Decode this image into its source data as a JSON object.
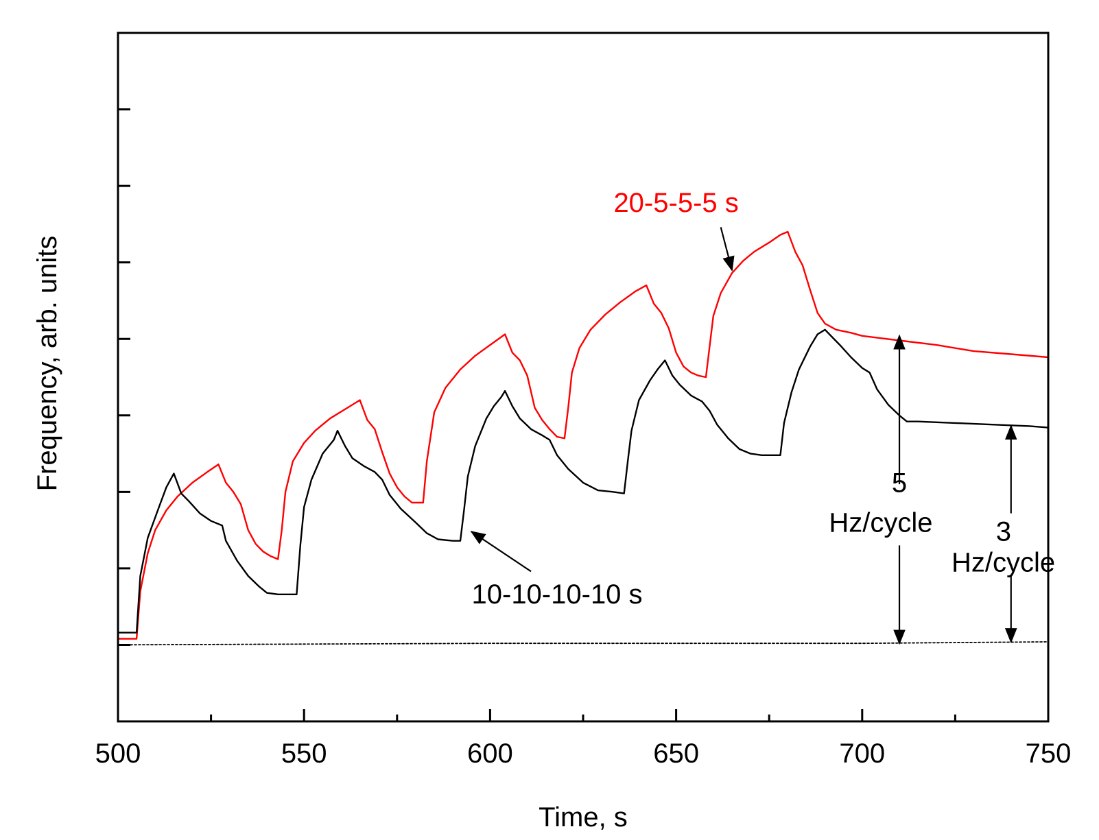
{
  "chart_data": {
    "type": "line",
    "title": "",
    "xlabel": "Time, s",
    "ylabel": "Frequency, arb. units",
    "xlim": [
      500,
      750
    ],
    "ylim": [
      -5,
      40
    ],
    "x_major_ticks": [
      500,
      550,
      600,
      650,
      700,
      750
    ],
    "x_minor_ticks": [
      525,
      575,
      625,
      675,
      725
    ],
    "y_ticks": [
      0,
      5,
      10,
      15,
      20,
      25,
      30,
      35
    ],
    "y_tick_labels_shown": false,
    "grid": false,
    "colors": {
      "red": "#ff0000",
      "black": "#000000",
      "axis": "#000000"
    },
    "series": [
      {
        "name": "20-5-5-5 s",
        "color": "#ff0000",
        "points": [
          [
            500,
            0.4
          ],
          [
            504,
            0.4
          ],
          [
            505,
            0.4
          ],
          [
            506,
            3.5
          ],
          [
            508,
            6.0
          ],
          [
            510,
            7.5
          ],
          [
            513,
            8.8
          ],
          [
            516,
            9.7
          ],
          [
            520,
            10.6
          ],
          [
            524,
            11.3
          ],
          [
            527,
            11.8
          ],
          [
            529,
            10.6
          ],
          [
            531,
            10.0
          ],
          [
            533,
            9.2
          ],
          [
            535,
            7.5
          ],
          [
            537,
            6.6
          ],
          [
            539,
            6.1
          ],
          [
            541,
            5.8
          ],
          [
            543,
            5.6
          ],
          [
            544,
            7.5
          ],
          [
            545,
            10.0
          ],
          [
            547,
            12.0
          ],
          [
            550,
            13.2
          ],
          [
            553,
            14.0
          ],
          [
            557,
            14.8
          ],
          [
            561,
            15.4
          ],
          [
            565,
            16.0
          ],
          [
            567,
            14.7
          ],
          [
            569,
            14.1
          ],
          [
            571,
            12.6
          ],
          [
            573,
            11.2
          ],
          [
            575,
            10.3
          ],
          [
            577,
            9.7
          ],
          [
            579,
            9.3
          ],
          [
            581,
            9.3
          ],
          [
            582,
            9.3
          ],
          [
            583,
            12.0
          ],
          [
            585,
            15.2
          ],
          [
            588,
            16.8
          ],
          [
            592,
            18.0
          ],
          [
            596,
            18.9
          ],
          [
            600,
            19.6
          ],
          [
            604,
            20.3
          ],
          [
            606,
            19.1
          ],
          [
            608,
            18.6
          ],
          [
            610,
            17.6
          ],
          [
            612,
            15.5
          ],
          [
            614,
            14.7
          ],
          [
            616,
            14.1
          ],
          [
            618,
            13.6
          ],
          [
            620,
            13.5
          ],
          [
            621,
            15.5
          ],
          [
            622,
            17.8
          ],
          [
            624,
            19.4
          ],
          [
            627,
            20.6
          ],
          [
            631,
            21.6
          ],
          [
            635,
            22.4
          ],
          [
            639,
            23.1
          ],
          [
            642,
            23.5
          ],
          [
            644,
            22.3
          ],
          [
            646,
            21.7
          ],
          [
            648,
            20.7
          ],
          [
            650,
            19.1
          ],
          [
            652,
            18.2
          ],
          [
            654,
            17.8
          ],
          [
            656,
            17.6
          ],
          [
            658,
            17.5
          ],
          [
            659,
            19.5
          ],
          [
            660,
            21.5
          ],
          [
            662,
            23.0
          ],
          [
            665,
            24.3
          ],
          [
            668,
            25.1
          ],
          [
            671,
            25.7
          ],
          [
            675,
            26.3
          ],
          [
            678,
            26.8
          ],
          [
            680,
            27.0
          ],
          [
            682,
            25.7
          ],
          [
            684,
            24.8
          ],
          [
            686,
            23.2
          ],
          [
            688,
            21.7
          ],
          [
            690,
            21.0
          ],
          [
            693,
            20.6
          ],
          [
            697,
            20.4
          ],
          [
            700,
            20.2
          ],
          [
            710,
            19.9
          ],
          [
            720,
            19.6
          ],
          [
            730,
            19.2
          ],
          [
            740,
            19.0
          ],
          [
            750,
            18.8
          ]
        ]
      },
      {
        "name": "10-10-10-10 s",
        "color": "#000000",
        "points": [
          [
            500,
            0.8
          ],
          [
            505,
            0.8
          ],
          [
            506,
            4.5
          ],
          [
            508,
            7.0
          ],
          [
            511,
            9.0
          ],
          [
            513,
            10.3
          ],
          [
            515,
            11.2
          ],
          [
            517,
            9.9
          ],
          [
            519,
            9.4
          ],
          [
            522,
            8.6
          ],
          [
            525,
            8.1
          ],
          [
            528,
            7.8
          ],
          [
            529,
            6.8
          ],
          [
            532,
            5.5
          ],
          [
            535,
            4.5
          ],
          [
            538,
            3.8
          ],
          [
            540,
            3.4
          ],
          [
            543,
            3.3
          ],
          [
            546,
            3.3
          ],
          [
            548,
            3.3
          ],
          [
            549,
            6.5
          ],
          [
            550,
            9.0
          ],
          [
            552,
            10.8
          ],
          [
            555,
            12.5
          ],
          [
            558,
            13.4
          ],
          [
            559,
            14.0
          ],
          [
            561,
            13.0
          ],
          [
            563,
            12.2
          ],
          [
            566,
            11.7
          ],
          [
            569,
            11.3
          ],
          [
            571,
            10.8
          ],
          [
            573,
            9.8
          ],
          [
            576,
            8.9
          ],
          [
            580,
            8.0
          ],
          [
            583,
            7.3
          ],
          [
            586,
            6.9
          ],
          [
            590,
            6.8
          ],
          [
            592,
            6.8
          ],
          [
            593,
            8.8
          ],
          [
            594,
            11.0
          ],
          [
            596,
            13.0
          ],
          [
            599,
            14.8
          ],
          [
            601,
            15.6
          ],
          [
            603,
            16.2
          ],
          [
            604,
            16.6
          ],
          [
            606,
            15.6
          ],
          [
            608,
            14.8
          ],
          [
            611,
            14.1
          ],
          [
            614,
            13.7
          ],
          [
            616,
            13.4
          ],
          [
            618,
            12.4
          ],
          [
            621,
            11.5
          ],
          [
            625,
            10.6
          ],
          [
            629,
            10.1
          ],
          [
            633,
            10.0
          ],
          [
            636,
            9.9
          ],
          [
            637,
            12.0
          ],
          [
            638,
            14.0
          ],
          [
            640,
            16.0
          ],
          [
            643,
            17.3
          ],
          [
            645,
            18.0
          ],
          [
            647,
            18.6
          ],
          [
            649,
            17.6
          ],
          [
            651,
            17.0
          ],
          [
            654,
            16.3
          ],
          [
            657,
            15.9
          ],
          [
            659,
            15.3
          ],
          [
            661,
            14.4
          ],
          [
            664,
            13.5
          ],
          [
            667,
            12.8
          ],
          [
            670,
            12.5
          ],
          [
            673,
            12.4
          ],
          [
            678,
            12.4
          ],
          [
            679,
            14.5
          ],
          [
            681,
            16.5
          ],
          [
            683,
            18.0
          ],
          [
            686,
            19.5
          ],
          [
            688,
            20.3
          ],
          [
            690,
            20.6
          ],
          [
            692,
            20.1
          ],
          [
            694,
            19.6
          ],
          [
            697,
            18.8
          ],
          [
            700,
            18.1
          ],
          [
            702,
            17.8
          ],
          [
            704,
            16.7
          ],
          [
            707,
            15.7
          ],
          [
            710,
            15.0
          ],
          [
            712,
            14.6
          ],
          [
            715,
            14.6
          ],
          [
            725,
            14.5
          ],
          [
            735,
            14.4
          ],
          [
            745,
            14.3
          ],
          [
            750,
            14.2
          ]
        ]
      },
      {
        "name": "baseline",
        "color": "#000000",
        "dashed": true,
        "points": [
          [
            500,
            0.0
          ],
          [
            600,
            0.1
          ],
          [
            700,
            0.1
          ],
          [
            750,
            0.2
          ]
        ]
      }
    ],
    "annotations": [
      {
        "id": "label-red",
        "text": "20-5-5-5 s",
        "color": "#ff0000",
        "x": 650,
        "y": 28.3,
        "anchor": "middle"
      },
      {
        "id": "label-black",
        "text": "10-10-10-10 s",
        "color": "#000000",
        "x": 618,
        "y": 2.7,
        "anchor": "middle"
      },
      {
        "id": "label-5",
        "text": "5",
        "color": "#000000",
        "x": 710,
        "y": 10.0,
        "anchor": "middle"
      },
      {
        "id": "label-5-unit",
        "text": "Hz/cycle",
        "color": "#000000",
        "x": 705,
        "y": 7.4,
        "anchor": "middle"
      },
      {
        "id": "label-3",
        "text": "3",
        "color": "#000000",
        "x": 738,
        "y": 6.8,
        "anchor": "middle"
      },
      {
        "id": "label-3-unit",
        "text": "Hz/cycle",
        "color": "#000000",
        "x": 724,
        "y": 4.8,
        "anchor": "start"
      }
    ],
    "arrows": [
      {
        "id": "arrow-red",
        "from": [
          662,
          27.3
        ],
        "to": [
          665,
          24.5
        ]
      },
      {
        "id": "arrow-black",
        "from": [
          611,
          4.8
        ],
        "to": [
          595,
          7.4
        ]
      },
      {
        "id": "arrow-5hz-up",
        "from": [
          710,
          10.5
        ],
        "to": [
          710,
          20.2
        ]
      },
      {
        "id": "arrow-5hz-down",
        "from": [
          710,
          6.5
        ],
        "to": [
          710,
          0.1
        ]
      },
      {
        "id": "arrow-3hz-up",
        "from": [
          740,
          8.6
        ],
        "to": [
          740,
          14.3
        ]
      },
      {
        "id": "arrow-3hz-down",
        "from": [
          740,
          4.5
        ],
        "to": [
          740,
          0.2
        ]
      }
    ]
  }
}
